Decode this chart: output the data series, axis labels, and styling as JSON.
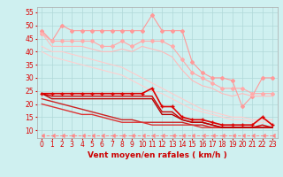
{
  "xlabel": "Vent moyen/en rafales ( km/h )",
  "ylabel": "",
  "background_color": "#cff0f0",
  "grid_color": "#b0d8d8",
  "xlim": [
    -0.5,
    23.5
  ],
  "ylim": [
    7,
    57
  ],
  "yticks": [
    10,
    15,
    20,
    25,
    30,
    35,
    40,
    45,
    50,
    55
  ],
  "xticks": [
    0,
    1,
    2,
    3,
    4,
    5,
    6,
    7,
    8,
    9,
    10,
    11,
    12,
    13,
    14,
    15,
    16,
    17,
    18,
    19,
    20,
    21,
    22,
    23
  ],
  "x": [
    0,
    1,
    2,
    3,
    4,
    5,
    6,
    7,
    8,
    9,
    10,
    11,
    12,
    13,
    14,
    15,
    16,
    17,
    18,
    19,
    20,
    21,
    22,
    23
  ],
  "lines": [
    {
      "y": [
        48,
        44,
        50,
        48,
        48,
        48,
        48,
        48,
        48,
        48,
        48,
        54,
        48,
        48,
        48,
        36,
        32,
        30,
        30,
        29,
        19,
        23,
        30,
        30
      ],
      "color": "#ff9999",
      "linewidth": 0.8,
      "marker": "D",
      "markersize": 2.0,
      "zorder": 2
    },
    {
      "y": [
        47,
        44,
        44,
        44,
        44,
        44,
        42,
        42,
        44,
        42,
        44,
        44,
        44,
        42,
        37,
        32,
        30,
        28,
        26,
        26,
        26,
        24,
        24,
        24
      ],
      "color": "#ffaaaa",
      "linewidth": 0.8,
      "marker": "D",
      "markersize": 2.0,
      "zorder": 2
    },
    {
      "y": [
        47,
        42,
        42,
        42,
        42,
        41,
        40,
        40,
        41,
        40,
        42,
        41,
        40,
        38,
        33,
        29,
        27,
        26,
        24,
        23,
        24,
        23,
        23,
        23
      ],
      "color": "#ffbbbb",
      "linewidth": 0.8,
      "marker": null,
      "markersize": 0,
      "zorder": 2
    },
    {
      "y": [
        42,
        40,
        40,
        39,
        38,
        37,
        36,
        35,
        34,
        32,
        30,
        28,
        26,
        24,
        22,
        20,
        18,
        17,
        16,
        15,
        15,
        14,
        14,
        14
      ],
      "color": "#ffcccc",
      "linewidth": 0.8,
      "marker": null,
      "markersize": 0,
      "zorder": 1
    },
    {
      "y": [
        40,
        38,
        37,
        36,
        35,
        34,
        33,
        32,
        31,
        29,
        27,
        25,
        24,
        22,
        20,
        18,
        17,
        16,
        15,
        14,
        14,
        13,
        13,
        13
      ],
      "color": "#ffd0d0",
      "linewidth": 0.8,
      "marker": null,
      "markersize": 0,
      "zorder": 1
    },
    {
      "y": [
        24,
        24,
        24,
        24,
        24,
        24,
        24,
        24,
        24,
        24,
        24,
        26,
        19,
        19,
        15,
        14,
        14,
        13,
        12,
        12,
        12,
        12,
        15,
        12
      ],
      "color": "#dd0000",
      "linewidth": 1.2,
      "marker": "+",
      "markersize": 3,
      "zorder": 5
    },
    {
      "y": [
        24,
        23,
        23,
        23,
        23,
        23,
        23,
        23,
        23,
        23,
        23,
        23,
        17,
        17,
        14,
        13,
        13,
        12,
        11,
        11,
        11,
        11,
        12,
        11
      ],
      "color": "#cc0000",
      "linewidth": 1.0,
      "marker": null,
      "markersize": 0,
      "zorder": 4
    },
    {
      "y": [
        24,
        22,
        22,
        22,
        22,
        22,
        22,
        22,
        22,
        22,
        22,
        22,
        16,
        16,
        14,
        13,
        13,
        12,
        11,
        11,
        11,
        11,
        11,
        11
      ],
      "color": "#bb0000",
      "linewidth": 1.0,
      "marker": null,
      "markersize": 0,
      "zorder": 4
    },
    {
      "y": [
        22,
        21,
        20,
        19,
        18,
        17,
        16,
        15,
        14,
        14,
        13,
        13,
        13,
        13,
        13,
        12,
        12,
        11,
        11,
        11,
        11,
        11,
        11,
        11
      ],
      "color": "#cc2222",
      "linewidth": 1.0,
      "marker": null,
      "markersize": 0,
      "zorder": 3
    },
    {
      "y": [
        20,
        19,
        18,
        17,
        16,
        16,
        15,
        14,
        13,
        13,
        13,
        12,
        12,
        12,
        12,
        12,
        11,
        11,
        11,
        11,
        11,
        11,
        11,
        11
      ],
      "color": "#dd3333",
      "linewidth": 1.0,
      "marker": null,
      "markersize": 0,
      "zorder": 3
    },
    {
      "y": [
        8,
        8,
        8,
        8,
        8,
        8,
        8,
        8,
        8,
        8,
        8,
        8,
        8,
        8,
        8,
        8,
        8,
        8,
        8,
        8,
        8,
        8,
        8,
        8
      ],
      "color": "#ff8888",
      "linewidth": 0.7,
      "marker": 4,
      "markersize": 2.5,
      "linestyle": "--",
      "zorder": 1
    }
  ],
  "label_fontsize": 6.5,
  "tick_fontsize": 5.5
}
